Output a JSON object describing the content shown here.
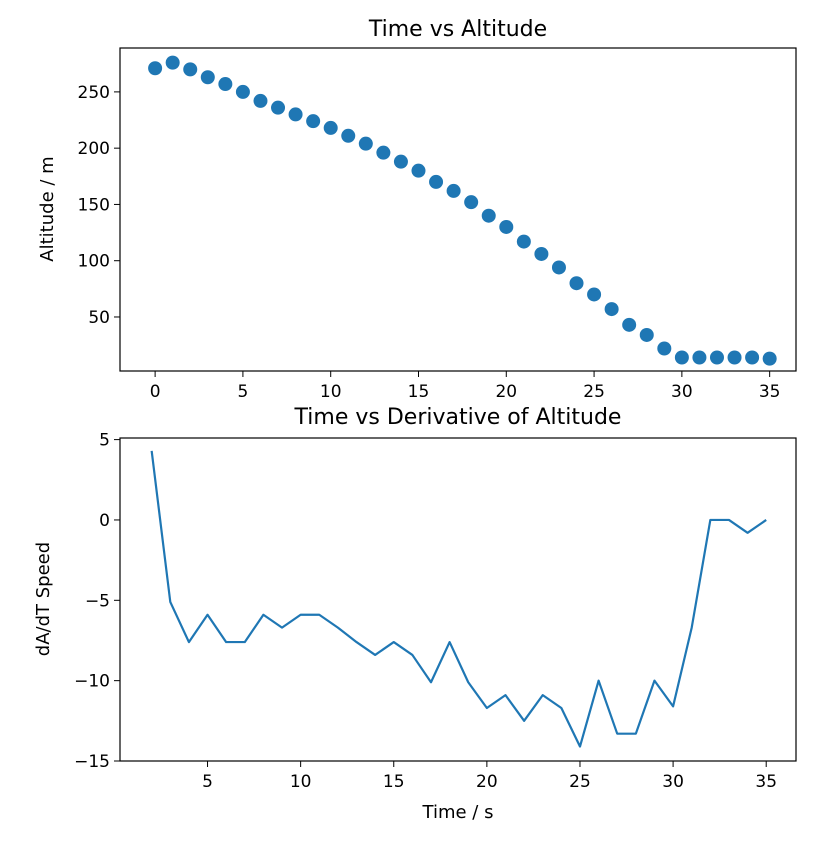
{
  "chart_data": [
    {
      "type": "scatter",
      "title": "Time vs Altitude",
      "xlabel": "",
      "ylabel": "Altitude / m",
      "xlim": [
        -2,
        36.5
      ],
      "ylim": [
        2,
        289
      ],
      "xticks": [
        0,
        5,
        10,
        15,
        20,
        25,
        30,
        35
      ],
      "yticks": [
        50,
        100,
        150,
        200,
        250
      ],
      "grid": false,
      "color": "#1f77b4",
      "series": [
        {
          "x": [
            0,
            1,
            2,
            3,
            4,
            5,
            6,
            7,
            8,
            9,
            10,
            11,
            12,
            13,
            14,
            15,
            16,
            17,
            18,
            19,
            20,
            21,
            22,
            23,
            24,
            25,
            26,
            27,
            28,
            29,
            30,
            31,
            32,
            33,
            34,
            35
          ],
          "y": [
            271,
            276,
            270,
            263,
            257,
            250,
            242,
            236,
            230,
            224,
            218,
            211,
            204,
            196,
            188,
            180,
            170,
            162,
            152,
            140,
            130,
            117,
            106,
            94,
            80,
            70,
            57,
            43,
            34,
            22,
            14,
            14,
            14,
            14,
            14,
            13
          ]
        }
      ]
    },
    {
      "type": "line",
      "title": "Time vs Derivative of Altitude",
      "xlabel": "Time / s",
      "ylabel": "dA/dT Speed",
      "xlim": [
        0.3,
        36.6
      ],
      "ylim": [
        -15.0,
        5.1
      ],
      "xticks": [
        5,
        10,
        15,
        20,
        25,
        30,
        35
      ],
      "yticks": [
        -15,
        -10,
        -5,
        0,
        5
      ],
      "ytick_labels": [
        "−15",
        "−10",
        "−5",
        "0",
        "5"
      ],
      "grid": false,
      "color": "#1f77b4",
      "series": [
        {
          "x": [
            2,
            3,
            4,
            5,
            6,
            7,
            8,
            9,
            10,
            11,
            12,
            13,
            14,
            15,
            16,
            17,
            18,
            19,
            20,
            21,
            22,
            23,
            24,
            25,
            26,
            27,
            28,
            29,
            30,
            31,
            32,
            33,
            34,
            35
          ],
          "y": [
            4.3,
            -5.1,
            -7.6,
            -5.9,
            -7.6,
            -7.6,
            -5.9,
            -6.7,
            -5.9,
            -5.9,
            -6.7,
            -7.6,
            -8.4,
            -7.6,
            -8.4,
            -10.1,
            -7.6,
            -10.1,
            -11.7,
            -10.9,
            -12.5,
            -10.9,
            -11.7,
            -14.1,
            -10.0,
            -13.3,
            -13.3,
            -10.0,
            -11.6,
            -6.7,
            0.0,
            0.0,
            -0.8,
            0.0
          ]
        }
      ]
    }
  ]
}
